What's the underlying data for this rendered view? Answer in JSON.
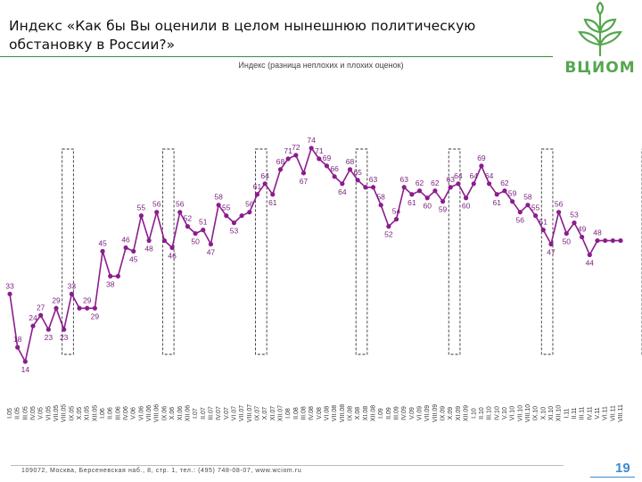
{
  "header": {
    "title": "Индекс «Как бы Вы оценили в целом нынешнюю политическую обстановку в России?»",
    "logo_text": "ВЦИОМ",
    "subtitle": "Индекс (разница неплохих и плохих оценок)"
  },
  "chart_data": {
    "type": "line",
    "title": "Индекс (разница неплохих и плохих оценок)",
    "series": [
      {
        "name": "Индекс",
        "color": "#8b1c8e"
      }
    ],
    "categories": [
      "I.05",
      "II.05",
      "III.05",
      "IV.05",
      "V.05",
      "VI.05",
      "VII.05",
      "VIII.05",
      "IX.05",
      "X.05",
      "XI.05",
      "XII.05",
      "I.06",
      "II.06",
      "III.06",
      "IV.06",
      "V.06",
      "VI.06",
      "VII.06",
      "VIII.06",
      "IX.06",
      "X.06",
      "XI.06",
      "XII.06",
      "I.07",
      "II.07",
      "III.07",
      "IV.07",
      "V.07",
      "VI.07",
      "VII.07",
      "VIII.07",
      "IX.07",
      "X.07",
      "XI.07",
      "XII.07",
      "I.08",
      "II.08",
      "III.08",
      "IV.08",
      "V.08",
      "VI.08",
      "VII.08",
      "VIII.08",
      "IX.08",
      "X.08",
      "XI.08",
      "XII.08",
      "I.09",
      "II.09",
      "III.09",
      "IV.09",
      "V.09",
      "VI.09",
      "VII.09",
      "VIII.09",
      "IX.09",
      "X.09",
      "XI.09",
      "XII.09",
      "I.10",
      "II.10",
      "III.10",
      "IV.10",
      "V.10",
      "VI.10",
      "VII.10",
      "VIII.10",
      "IX.10",
      "X.10",
      "XI.10",
      "XII.10",
      "I.11",
      "II.11",
      "III.11",
      "IV.11",
      "V.11",
      "VI.11",
      "VII.11",
      "VIII.11"
    ],
    "values": [
      33,
      18,
      14,
      24,
      27,
      23,
      29,
      23,
      33,
      29,
      29,
      29,
      45,
      38,
      38,
      46,
      45,
      55,
      48,
      56,
      48,
      46,
      56,
      52,
      50,
      51,
      47,
      58,
      55,
      53,
      55,
      56,
      61,
      64,
      61,
      68,
      71,
      72,
      67,
      74,
      71,
      69,
      66,
      64,
      68,
      65,
      63,
      63,
      58,
      52,
      54,
      63,
      61,
      62,
      60,
      62,
      59,
      63,
      64,
      60,
      64,
      69,
      64,
      61,
      62,
      59,
      56,
      58,
      55,
      51,
      47,
      56,
      50,
      53,
      49,
      44,
      48,
      48,
      48,
      48
    ],
    "data_labels": [
      {
        "index": 0,
        "text": "33"
      },
      {
        "index": 1,
        "text": "18"
      },
      {
        "index": 2,
        "text": "14"
      },
      {
        "index": 3,
        "text": "24"
      },
      {
        "index": 4,
        "text": "27"
      },
      {
        "index": 5,
        "text": "23"
      },
      {
        "index": 6,
        "text": "29"
      },
      {
        "index": 7,
        "text": "23"
      },
      {
        "index": 8,
        "text": "33"
      },
      {
        "index": 10,
        "text": "29"
      },
      {
        "index": 11,
        "text": "29"
      },
      {
        "index": 12,
        "text": "45"
      },
      {
        "index": 13,
        "text": "38"
      },
      {
        "index": 15,
        "text": "46"
      },
      {
        "index": 16,
        "text": "45"
      },
      {
        "index": 17,
        "text": "55"
      },
      {
        "index": 18,
        "text": "48"
      },
      {
        "index": 19,
        "text": "56"
      },
      {
        "index": 21,
        "text": "46"
      },
      {
        "index": 22,
        "text": "56"
      },
      {
        "index": 23,
        "text": "52"
      },
      {
        "index": 24,
        "text": "50"
      },
      {
        "index": 25,
        "text": "51"
      },
      {
        "index": 26,
        "text": "47"
      },
      {
        "index": 27,
        "text": "58"
      },
      {
        "index": 28,
        "text": "55"
      },
      {
        "index": 29,
        "text": "53"
      },
      {
        "index": 31,
        "text": "56"
      },
      {
        "index": 32,
        "text": "61"
      },
      {
        "index": 33,
        "text": "64"
      },
      {
        "index": 34,
        "text": "61"
      },
      {
        "index": 35,
        "text": "68"
      },
      {
        "index": 36,
        "text": "71"
      },
      {
        "index": 37,
        "text": "72"
      },
      {
        "index": 38,
        "text": "67"
      },
      {
        "index": 39,
        "text": "74"
      },
      {
        "index": 40,
        "text": "71"
      },
      {
        "index": 41,
        "text": "69"
      },
      {
        "index": 42,
        "text": "66"
      },
      {
        "index": 43,
        "text": "64"
      },
      {
        "index": 44,
        "text": "68"
      },
      {
        "index": 45,
        "text": "65"
      },
      {
        "index": 47,
        "text": "63"
      },
      {
        "index": 48,
        "text": "58"
      },
      {
        "index": 49,
        "text": "52"
      },
      {
        "index": 50,
        "text": "54"
      },
      {
        "index": 51,
        "text": "63"
      },
      {
        "index": 52,
        "text": "61"
      },
      {
        "index": 53,
        "text": "62"
      },
      {
        "index": 54,
        "text": "60"
      },
      {
        "index": 55,
        "text": "62"
      },
      {
        "index": 56,
        "text": "59"
      },
      {
        "index": 57,
        "text": "63"
      },
      {
        "index": 58,
        "text": "64"
      },
      {
        "index": 59,
        "text": "60"
      },
      {
        "index": 60,
        "text": "64"
      },
      {
        "index": 61,
        "text": "69"
      },
      {
        "index": 62,
        "text": "64"
      },
      {
        "index": 63,
        "text": "61"
      },
      {
        "index": 64,
        "text": "62"
      },
      {
        "index": 65,
        "text": "59"
      },
      {
        "index": 66,
        "text": "56"
      },
      {
        "index": 67,
        "text": "58"
      },
      {
        "index": 68,
        "text": "55"
      },
      {
        "index": 69,
        "text": "51"
      },
      {
        "index": 70,
        "text": "47"
      },
      {
        "index": 71,
        "text": "56"
      },
      {
        "index": 72,
        "text": "50"
      },
      {
        "index": 73,
        "text": "53"
      },
      {
        "index": 74,
        "text": "49"
      },
      {
        "index": 75,
        "text": "44"
      },
      {
        "index": 76,
        "text": "48"
      }
    ],
    "highlight_ranges": [
      [
        7,
        8
      ],
      [
        20,
        21
      ],
      [
        32,
        33
      ],
      [
        45,
        46
      ],
      [
        57,
        58
      ],
      [
        69,
        70
      ],
      [
        82,
        83
      ]
    ],
    "ylim": [
      10,
      78
    ],
    "xlabel": "",
    "ylabel": "",
    "grid": false,
    "legend": "none"
  },
  "footer": {
    "address": "109072, Москва, Берсеневская наб., 8, стр. 1, тел.: (495) 748-08-07, www.wciom.ru",
    "page_number": "19"
  }
}
